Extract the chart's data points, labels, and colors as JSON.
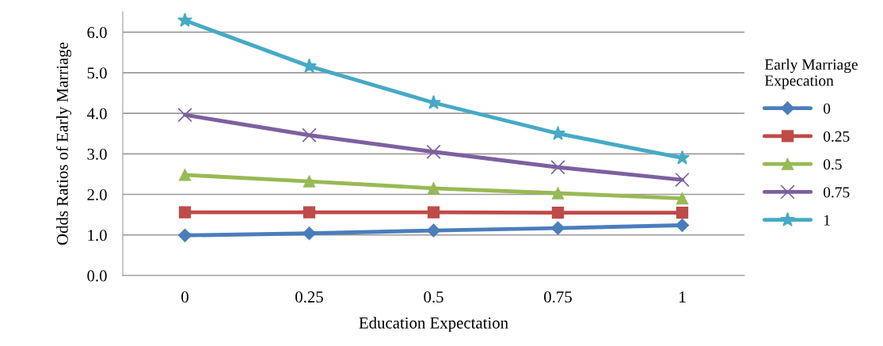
{
  "chart_data": {
    "type": "line",
    "xlabel": "Education Expectation",
    "ylabel": "Odds Ratios of Early Marriage",
    "legend_title": "Early Marriage\nExpecation",
    "categories": [
      "0",
      "0.25",
      "0.5",
      "0.75",
      "1"
    ],
    "series": [
      {
        "name": "0",
        "color": "#4a7ebb",
        "marker": "diamond",
        "values": [
          0.99,
          1.04,
          1.11,
          1.17,
          1.24
        ]
      },
      {
        "name": "0.25",
        "color": "#be4b48",
        "marker": "square",
        "values": [
          1.56,
          1.56,
          1.56,
          1.55,
          1.55
        ]
      },
      {
        "name": "0.5",
        "color": "#98b954",
        "marker": "triangle",
        "values": [
          2.48,
          2.32,
          2.15,
          2.03,
          1.9
        ]
      },
      {
        "name": "0.75",
        "color": "#7d60a0",
        "marker": "cross",
        "values": [
          3.96,
          3.46,
          3.05,
          2.67,
          2.36
        ]
      },
      {
        "name": "1",
        "color": "#46aac5",
        "marker": "star",
        "values": [
          6.29,
          5.16,
          4.26,
          3.5,
          2.9
        ]
      }
    ],
    "ylim": [
      0,
      6.5
    ],
    "yticks": [
      {
        "value": 0,
        "label": "0.0"
      },
      {
        "value": 1,
        "label": "1.0"
      },
      {
        "value": 2,
        "label": "2.0"
      },
      {
        "value": 3,
        "label": "3.0"
      },
      {
        "value": 4,
        "label": "4.0"
      },
      {
        "value": 5,
        "label": "5.0"
      },
      {
        "value": 6,
        "label": "6.0"
      }
    ],
    "grid": "y",
    "legend": "right",
    "line_style": "solid"
  }
}
